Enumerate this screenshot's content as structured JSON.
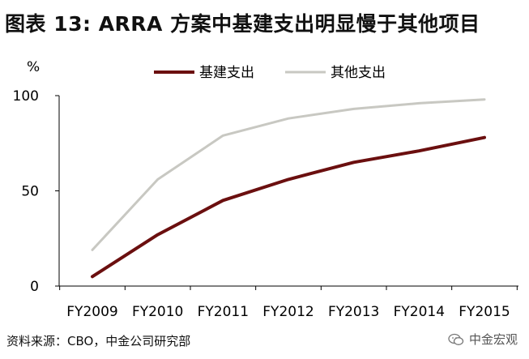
{
  "title": "图表 13: ARRA 方案中基建支出明显慢于其他项目",
  "source": "资料来源：CBO，中金公司研究部",
  "watermark": {
    "text": "中金宏观",
    "icon": "wechat-icon"
  },
  "colors": {
    "infrastructure": "#6b0f0f",
    "other": "#c8c8c2",
    "axis": "#000000"
  },
  "chart_data": {
    "type": "line",
    "ylabel": "%",
    "ylim": [
      0,
      100
    ],
    "yticks": [
      0,
      50,
      100
    ],
    "categories": [
      "FY2009",
      "FY2010",
      "FY2011",
      "FY2012",
      "FY2013",
      "FY2014",
      "FY2015"
    ],
    "legend_position": "top",
    "grid": false,
    "series": [
      {
        "name": "基建支出",
        "color_key": "infrastructure",
        "values": [
          5,
          27,
          45,
          56,
          65,
          71,
          78
        ]
      },
      {
        "name": "其他支出",
        "color_key": "other",
        "values": [
          19,
          56,
          79,
          88,
          93,
          96,
          98
        ]
      }
    ]
  }
}
